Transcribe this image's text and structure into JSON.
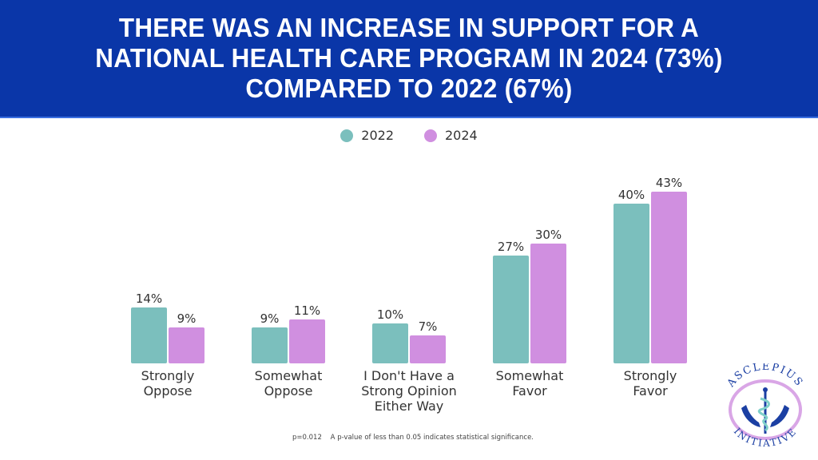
{
  "header": {
    "title": "THERE WAS AN INCREASE IN SUPPORT FOR A NATIONAL HEALTH CARE PROGRAM IN 2024 (73%) COMPARED TO 2022 (67%)"
  },
  "legend": [
    {
      "label": "2022",
      "color": "#7bbfbd"
    },
    {
      "label": "2024",
      "color": "#d08fe0"
    }
  ],
  "footnote": {
    "pvalue": "p=0.012",
    "note": "A p-value of less than 0.05 indicates statistical significance."
  },
  "logo": {
    "top_text": "ASCLEPIUS",
    "bottom_text": "INITIATIVE"
  },
  "chart_data": {
    "type": "bar",
    "title": "There was an increase in support for a national health care program in 2024 (73%) compared to 2022 (67%)",
    "xlabel": "",
    "ylabel": "",
    "ylim": [
      0,
      45
    ],
    "grid": false,
    "legend_position": "top-center",
    "categories": [
      [
        "Strongly",
        "Oppose"
      ],
      [
        "Somewhat",
        "Oppose"
      ],
      [
        "I Don't Have a",
        "Strong Opinion",
        "Either Way"
      ],
      [
        "Somewhat",
        "Favor"
      ],
      [
        "Strongly",
        "Favor"
      ]
    ],
    "series": [
      {
        "name": "2022",
        "color": "#7bbfbd",
        "values": [
          14,
          9,
          10,
          27,
          40
        ],
        "labels": [
          "14%",
          "9%",
          "10%",
          "27%",
          "40%"
        ]
      },
      {
        "name": "2024",
        "color": "#d08fe0",
        "values": [
          9,
          11,
          7,
          30,
          43
        ],
        "labels": [
          "9%",
          "11%",
          "7%",
          "30%",
          "43%"
        ]
      }
    ]
  }
}
